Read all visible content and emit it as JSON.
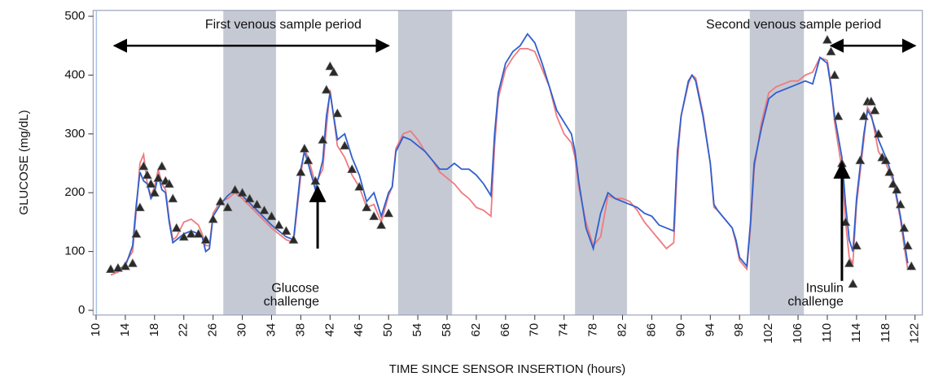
{
  "chart_data": {
    "type": "line",
    "y_label": "GLUCOSE (mg/dL)",
    "x_label": "TIME SINCE SENSOR INSERTION (hours)",
    "xlim": [
      9.6,
      123
    ],
    "ylim": [
      -8,
      510
    ],
    "xticks": [
      10,
      14,
      18,
      22,
      26,
      30,
      34,
      38,
      42,
      46,
      50,
      54,
      58,
      62,
      66,
      70,
      74,
      78,
      82,
      86,
      90,
      94,
      98,
      102,
      106,
      110,
      114,
      118,
      122
    ],
    "yticks": [
      0,
      100,
      200,
      300,
      400,
      500
    ],
    "shaded_regions": [
      [
        27.4,
        34.6
      ],
      [
        51.3,
        58.7
      ],
      [
        75.5,
        82.6
      ],
      [
        99.4,
        106.8
      ]
    ],
    "shade_color": "#c5c9d3",
    "x": [
      12,
      13,
      14,
      15,
      15.5,
      16,
      16.5,
      17,
      17.5,
      18,
      18.5,
      19,
      19.5,
      20,
      20.5,
      21,
      22,
      23,
      24,
      24.5,
      25,
      25.5,
      26,
      27,
      28,
      29,
      30,
      32,
      34,
      35,
      36,
      37,
      38,
      38.5,
      39,
      40,
      41,
      41.5,
      42,
      43,
      44,
      45,
      46,
      47,
      48,
      49,
      50,
      50.5,
      51,
      52,
      53,
      54,
      55,
      56,
      57,
      58,
      59,
      60,
      61,
      62,
      63,
      64,
      64.5,
      65,
      66,
      67,
      68,
      69,
      70,
      71,
      72,
      73,
      74,
      75,
      75.5,
      76,
      77,
      78,
      79,
      80,
      81,
      82,
      83,
      84,
      85,
      86,
      87,
      88,
      89,
      89.5,
      90,
      91,
      91.5,
      92,
      93,
      94,
      94.5,
      95,
      96,
      97,
      97.5,
      98,
      99,
      99.5,
      100,
      101,
      102,
      103,
      104,
      105,
      106,
      107,
      108,
      109,
      110,
      110.5,
      111,
      112,
      112.5,
      113,
      113.5,
      114,
      115,
      115.5,
      116,
      117,
      118,
      119,
      120,
      120.5,
      121
    ],
    "series": [
      {
        "color": "#f07a80",
        "values": [
          60,
          65,
          80,
          100,
          170,
          250,
          265,
          215,
          195,
          210,
          240,
          215,
          205,
          155,
          120,
          125,
          150,
          155,
          145,
          130,
          110,
          110,
          165,
          185,
          190,
          200,
          190,
          165,
          140,
          130,
          120,
          115,
          230,
          275,
          260,
          215,
          240,
          310,
          375,
          280,
          260,
          230,
          210,
          175,
          180,
          150,
          195,
          210,
          275,
          300,
          305,
          290,
          270,
          255,
          235,
          225,
          215,
          200,
          190,
          175,
          170,
          160,
          280,
          360,
          410,
          430,
          445,
          445,
          440,
          410,
          380,
          330,
          300,
          285,
          260,
          210,
          150,
          110,
          125,
          195,
          190,
          190,
          185,
          170,
          150,
          135,
          120,
          105,
          115,
          250,
          330,
          385,
          400,
          395,
          335,
          250,
          175,
          170,
          155,
          140,
          115,
          85,
          70,
          140,
          240,
          320,
          370,
          380,
          385,
          390,
          390,
          400,
          405,
          430,
          425,
          385,
          320,
          240,
          150,
          90,
          80,
          180,
          290,
          345,
          335,
          270,
          250,
          220,
          155,
          110,
          70
        ]
      },
      {
        "color": "#2f5fcc",
        "values": [
          65,
          70,
          75,
          110,
          180,
          235,
          220,
          215,
          190,
          200,
          230,
          205,
          200,
          150,
          115,
          120,
          130,
          135,
          130,
          125,
          100,
          105,
          160,
          180,
          195,
          205,
          195,
          170,
          145,
          135,
          125,
          120,
          240,
          270,
          250,
          205,
          255,
          330,
          370,
          290,
          300,
          260,
          230,
          185,
          200,
          160,
          200,
          210,
          270,
          295,
          290,
          280,
          270,
          255,
          240,
          240,
          250,
          240,
          240,
          230,
          215,
          195,
          300,
          370,
          420,
          440,
          450,
          470,
          455,
          420,
          380,
          340,
          320,
          300,
          270,
          220,
          140,
          105,
          165,
          200,
          190,
          185,
          180,
          175,
          165,
          160,
          145,
          140,
          135,
          270,
          330,
          390,
          400,
          390,
          330,
          250,
          180,
          170,
          155,
          140,
          120,
          90,
          75,
          150,
          250,
          310,
          360,
          370,
          375,
          380,
          385,
          390,
          385,
          430,
          420,
          380,
          330,
          260,
          180,
          120,
          100,
          190,
          300,
          340,
          330,
          290,
          260,
          225,
          160,
          120,
          80
        ]
      },
      {
        "color": "#2a2a2a",
        "marker": "triangle",
        "x": [
          12,
          13,
          14,
          15,
          15.5,
          16,
          16.5,
          17,
          17.5,
          18,
          18.5,
          19,
          19.5,
          20,
          20.5,
          21,
          22,
          23,
          24,
          25,
          26,
          27,
          28,
          29,
          30,
          31,
          32,
          33,
          34,
          35,
          36,
          37,
          38,
          38.5,
          39,
          40,
          41,
          41.5,
          42,
          42.5,
          43,
          44,
          45,
          46,
          47,
          48,
          49,
          50,
          110,
          110.5,
          111,
          111.5,
          112,
          112.5,
          113,
          113.5,
          114,
          114.5,
          115,
          115.5,
          116,
          116.5,
          117,
          117.5,
          118,
          118.5,
          119,
          119.5,
          120,
          120.5,
          121,
          121.5
        ],
        "values": [
          70,
          72,
          75,
          80,
          130,
          175,
          245,
          230,
          215,
          200,
          225,
          245,
          220,
          215,
          190,
          140,
          125,
          130,
          130,
          120,
          155,
          185,
          175,
          205,
          200,
          190,
          180,
          170,
          160,
          145,
          135,
          120,
          235,
          275,
          255,
          220,
          290,
          375,
          415,
          405,
          335,
          280,
          240,
          210,
          175,
          160,
          145,
          165,
          460,
          440,
          400,
          330,
          250,
          150,
          80,
          45,
          110,
          255,
          330,
          355,
          355,
          340,
          300,
          260,
          255,
          235,
          215,
          205,
          180,
          140,
          110,
          75
        ]
      }
    ],
    "annotations": [
      {
        "text": "First venous sample period",
        "text_x": 35.6,
        "text_y": 485,
        "x": [
          12.5,
          50
        ],
        "y": 450
      },
      {
        "text": "Second venous sample period",
        "text_x": 105.4,
        "text_y": 485,
        "x": [
          110.5,
          122
        ],
        "y": 450
      },
      {
        "text": [
          "Glucose",
          "challenge"
        ],
        "x": 40.3,
        "y": [
          105,
          210
        ],
        "text_y": [
          37,
          14
        ]
      },
      {
        "text": [
          "Insulin",
          "challenge"
        ],
        "x": 112,
        "y": [
          50,
          250
        ],
        "text_y": [
          37,
          14
        ]
      }
    ]
  }
}
